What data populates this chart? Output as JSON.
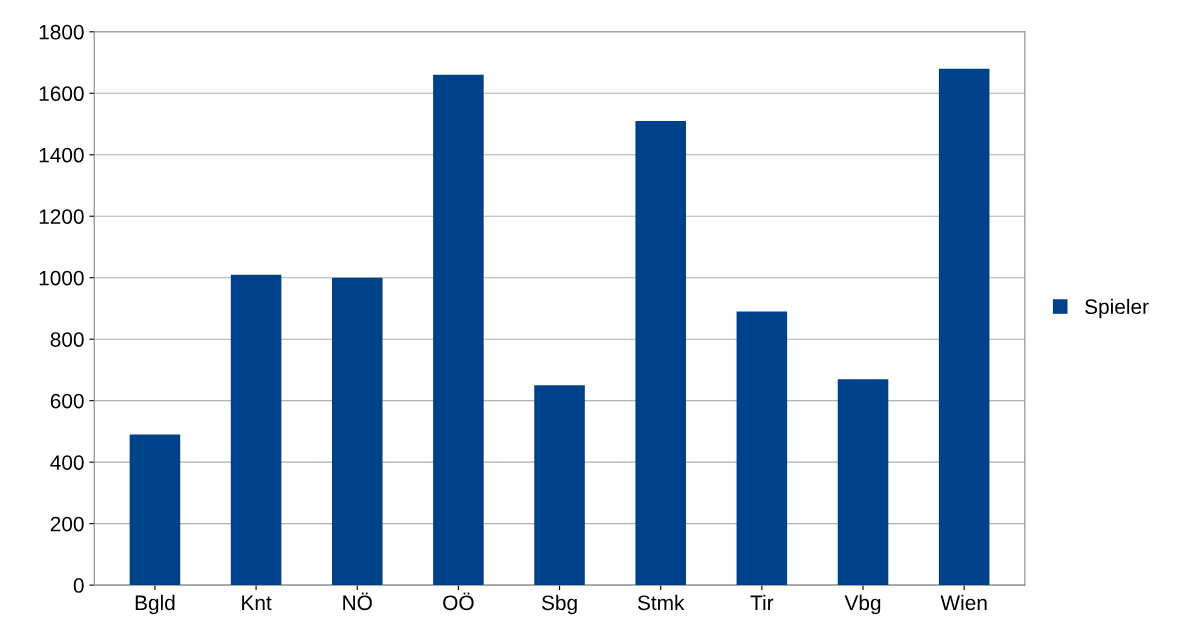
{
  "chart_data": {
    "type": "bar",
    "categories": [
      "Bgld",
      "Knt",
      "NÖ",
      "OÖ",
      "Sbg",
      "Stmk",
      "Tir",
      "Vbg",
      "Wien"
    ],
    "series": [
      {
        "name": "Spieler",
        "color": "#00428a",
        "values": [
          490,
          1010,
          1000,
          1660,
          650,
          1510,
          890,
          670,
          1680
        ]
      }
    ],
    "ylim": [
      0,
      1800
    ],
    "yticks": [
      0,
      200,
      400,
      600,
      800,
      1000,
      1200,
      1400,
      1600,
      1800
    ],
    "grid": "y",
    "legend": "right"
  }
}
